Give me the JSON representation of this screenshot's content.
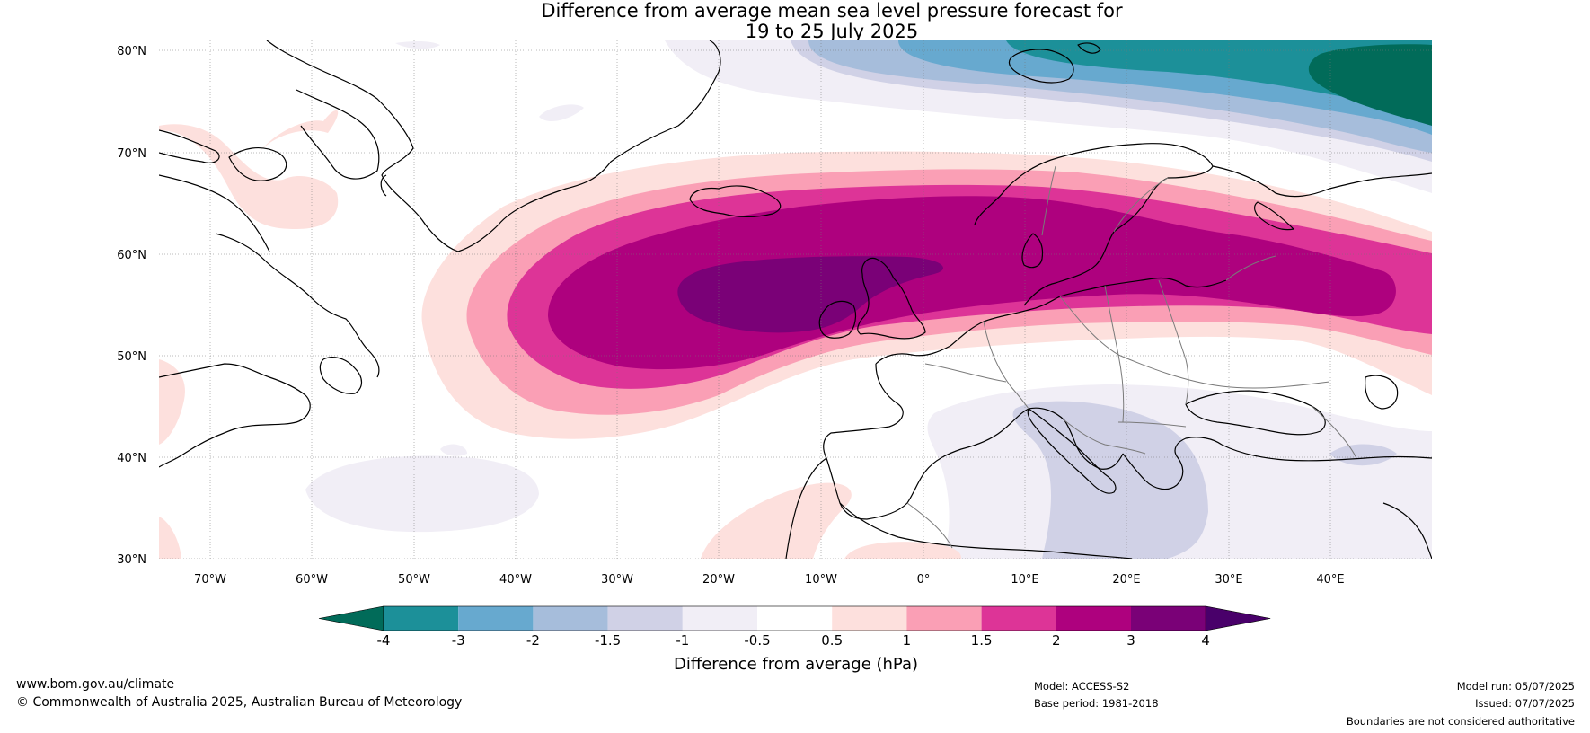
{
  "title": {
    "line1": "Difference from average mean sea level pressure forecast for",
    "line2": "19 to 25 July 2025"
  },
  "map": {
    "lat_labels": [
      "80°N",
      "70°N",
      "60°N",
      "50°N",
      "40°N",
      "30°N"
    ],
    "lon_labels": [
      "70°W",
      "60°W",
      "50°W",
      "40°W",
      "30°W",
      "20°W",
      "10°W",
      "0°",
      "10°E",
      "20°E",
      "30°E",
      "40°E"
    ],
    "lon_range": [
      -75,
      50
    ],
    "lat_range": [
      30,
      81
    ],
    "field_description": "Positive MSLP anomaly (up to 3-4 hPa) centred over the British Isles and North Sea extending to Scandinavia and Baltic; negative anomaly (-2 to -4 hPa) over Svalbard / Barents Sea; weak negative anomaly over Mediterranean."
  },
  "colorbar": {
    "tick_labels": [
      "-4",
      "-3",
      "-2",
      "-1.5",
      "-1",
      "-0.5",
      "0.5",
      "1",
      "1.5",
      "2",
      "3",
      "4"
    ],
    "colors": [
      "#016b59",
      "#1c9099",
      "#67a9cf",
      "#a6bddb",
      "#d0d1e6",
      "#f1eef6",
      "#ffffff",
      "#fde0dd",
      "#fa9fb5",
      "#dd3497",
      "#ae017e",
      "#7a0177",
      "#49006a"
    ],
    "label": "Difference from average (hPa)"
  },
  "footer": {
    "website": "www.bom.gov.au/climate",
    "copyright": "© Commonwealth of Australia 2025, Australian Bureau of Meteorology",
    "model": "Model: ACCESS-S2",
    "base_period": "Base period: 1981-2018",
    "model_run": "Model run: 05/07/2025",
    "issued": "Issued: 07/07/2025",
    "boundaries": "Boundaries are not considered authoritative"
  }
}
